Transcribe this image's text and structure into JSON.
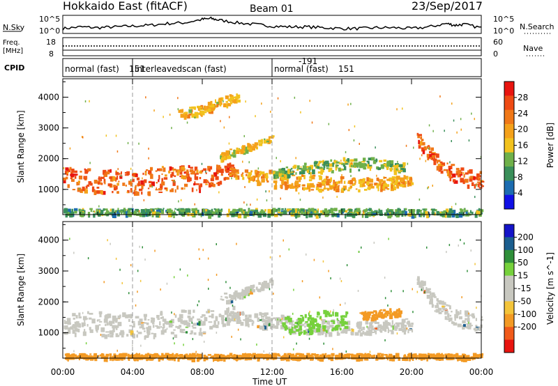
{
  "header": {
    "station": "Hokkaido East (fitACF)",
    "beam": "Beam 01",
    "date": "23/Sep/2017"
  },
  "top_panels": {
    "nsky_label": "N.Sky",
    "nsky_ticks": [
      "10^5",
      "10^0"
    ],
    "nsearch_label": "N.Search",
    "nsearch_ticks": [
      "10^5",
      "10^0"
    ],
    "freq_label_1": "Freq.",
    "freq_label_2": "[MHz]",
    "freq_ticks": [
      "18",
      "8"
    ],
    "nave_label": "Nave",
    "nave_ticks": [
      "60",
      "0"
    ],
    "cpid_label": "CPID",
    "cpid_segments": [
      {
        "label": "normal (fast)",
        "id": "151",
        "start_h": 0,
        "end_h": 4
      },
      {
        "label": "interleavedscan (fast)",
        "id": "-191",
        "start_h": 4,
        "end_h": 12
      },
      {
        "label": "normal (fast)",
        "id": "151",
        "start_h": 12,
        "end_h": 24
      }
    ]
  },
  "x_axis": {
    "label": "Time UT",
    "ticks": [
      "00:00",
      "04:00",
      "08:00",
      "12:00",
      "16:00",
      "20:00",
      "00:00"
    ]
  },
  "colors": {
    "power_scale": [
      "#1010e6",
      "#1c6cb0",
      "#3a8f5a",
      "#6fb04a",
      "#f2c21e",
      "#f4a11a",
      "#f07818",
      "#ee4a14",
      "#e8140f"
    ],
    "velocity_scale": [
      "#e8140f",
      "#f05a1a",
      "#f39a24",
      "#f3c43a",
      "#c8c8c0",
      "#c8c8c0",
      "#76d13c",
      "#2f8f3a",
      "#1b5e8f",
      "#1414c8"
    ]
  },
  "chart_data": [
    {
      "type": "heatmap",
      "title": "Power",
      "xlabel": "Time UT",
      "ylabel": "Slant Range [km]",
      "xlim": [
        0,
        24
      ],
      "ylim": [
        180,
        4600
      ],
      "yticks": [
        "1000",
        "2000",
        "3000",
        "4000"
      ],
      "colorbar_label": "Power [dB]",
      "colorbar_ticks": [
        "4",
        "8",
        "12",
        "16",
        "20",
        "24",
        "28"
      ],
      "colorbar_range": [
        0,
        32
      ],
      "bands": [
        {
          "t": [
            0,
            4,
            6,
            8,
            9.8
          ],
          "r_low": [
            1000,
            900,
            900,
            1000,
            1450
          ],
          "r_high": [
            1750,
            1650,
            1850,
            1750,
            1900
          ],
          "value": 26
        },
        {
          "t": [
            9.5,
            11,
            12,
            14,
            17,
            19,
            20
          ],
          "r_low": [
            1450,
            1200,
            1150,
            1000,
            1000,
            1050,
            1100
          ],
          "r_high": [
            1700,
            1700,
            1650,
            1500,
            1400,
            1450,
            1500
          ],
          "value": 20
        },
        {
          "t": [
            12,
            14,
            16,
            18,
            19.5
          ],
          "r_low": [
            1400,
            1550,
            1650,
            1650,
            1600
          ],
          "r_high": [
            1650,
            1900,
            2050,
            2050,
            1900
          ],
          "value": 12
        },
        {
          "t": [
            20.3,
            21.5,
            22.5,
            24
          ],
          "r_low": [
            2500,
            1650,
            1250,
            1000
          ],
          "r_high": [
            2900,
            2100,
            1800,
            1600
          ],
          "value": 26
        },
        {
          "t": [
            9.0,
            10.0,
            11.0,
            12.0
          ],
          "r_low": [
            2000,
            2150,
            2350,
            2600
          ],
          "r_high": [
            2300,
            2400,
            2600,
            2800
          ],
          "value": 17
        },
        {
          "t": [
            6.5,
            8.0,
            9.0,
            10.0
          ],
          "r_low": [
            3300,
            3500,
            3700,
            3900
          ],
          "r_high": [
            3600,
            3800,
            4000,
            4200
          ],
          "value": 18
        },
        {
          "t": [
            0,
            24
          ],
          "r_low": [
            200,
            200
          ],
          "r_high": [
            400,
            400
          ],
          "value": 10
        }
      ]
    },
    {
      "type": "heatmap",
      "title": "Velocity",
      "xlabel": "Time UT",
      "ylabel": "Slant Range [km]",
      "xlim": [
        0,
        24
      ],
      "ylim": [
        180,
        4600
      ],
      "yticks": [
        "1000",
        "2000",
        "3000",
        "4000"
      ],
      "colorbar_label": "Velocity [m s^-1]",
      "colorbar_ticks": [
        "200",
        "100",
        "50",
        "15",
        "-15",
        "-50",
        "-100",
        "-200"
      ],
      "colorbar_range": [
        -250,
        250
      ],
      "bands": [
        {
          "t": [
            0,
            4,
            6,
            8,
            9.8
          ],
          "r_low": [
            1000,
            900,
            900,
            1000,
            1450
          ],
          "r_high": [
            1750,
            1650,
            1850,
            1750,
            1900
          ],
          "value": 0
        },
        {
          "t": [
            9.5,
            11,
            12,
            14,
            17,
            19,
            20
          ],
          "r_low": [
            1450,
            1200,
            1150,
            1000,
            1000,
            1050,
            1100
          ],
          "r_high": [
            1700,
            1700,
            1650,
            1500,
            1400,
            1450,
            1500
          ],
          "value": 0
        },
        {
          "t": [
            12.5,
            13.5,
            15,
            16.3
          ],
          "r_low": [
            1100,
            1000,
            1050,
            1200
          ],
          "r_high": [
            1550,
            1650,
            1750,
            1700
          ],
          "value": 30
        },
        {
          "t": [
            17,
            18.5,
            19.3
          ],
          "r_low": [
            1450,
            1550,
            1600
          ],
          "r_high": [
            1700,
            1800,
            1850
          ],
          "value": -60
        },
        {
          "t": [
            20.3,
            21.5,
            22.5,
            24
          ],
          "r_low": [
            2500,
            1650,
            1250,
            1000
          ],
          "r_high": [
            2900,
            2100,
            1800,
            1600
          ],
          "value": 0
        },
        {
          "t": [
            9.0,
            10.0,
            11.0,
            12.0
          ],
          "r_low": [
            2000,
            2150,
            2350,
            2600
          ],
          "r_high": [
            2300,
            2400,
            2600,
            2800
          ],
          "value": 0
        },
        {
          "t": [
            0,
            24
          ],
          "r_low": [
            200,
            200
          ],
          "r_high": [
            350,
            350
          ],
          "value": -60
        }
      ]
    },
    {
      "type": "line",
      "title": "N.Sky",
      "x": [
        0,
        1,
        2,
        3,
        4,
        5,
        6,
        7,
        8,
        8.5,
        9,
        10,
        11,
        12,
        13,
        14,
        15,
        16,
        17,
        18,
        19,
        20,
        21,
        22,
        22.5,
        23,
        24
      ],
      "y_fraction": [
        0.25,
        0.35,
        0.3,
        0.35,
        0.4,
        0.45,
        0.55,
        0.6,
        0.8,
        0.85,
        0.75,
        0.6,
        0.5,
        0.4,
        0.35,
        0.35,
        0.3,
        0.25,
        0.25,
        0.3,
        0.3,
        0.25,
        0.35,
        0.55,
        0.45,
        0.5,
        0.3
      ]
    }
  ]
}
